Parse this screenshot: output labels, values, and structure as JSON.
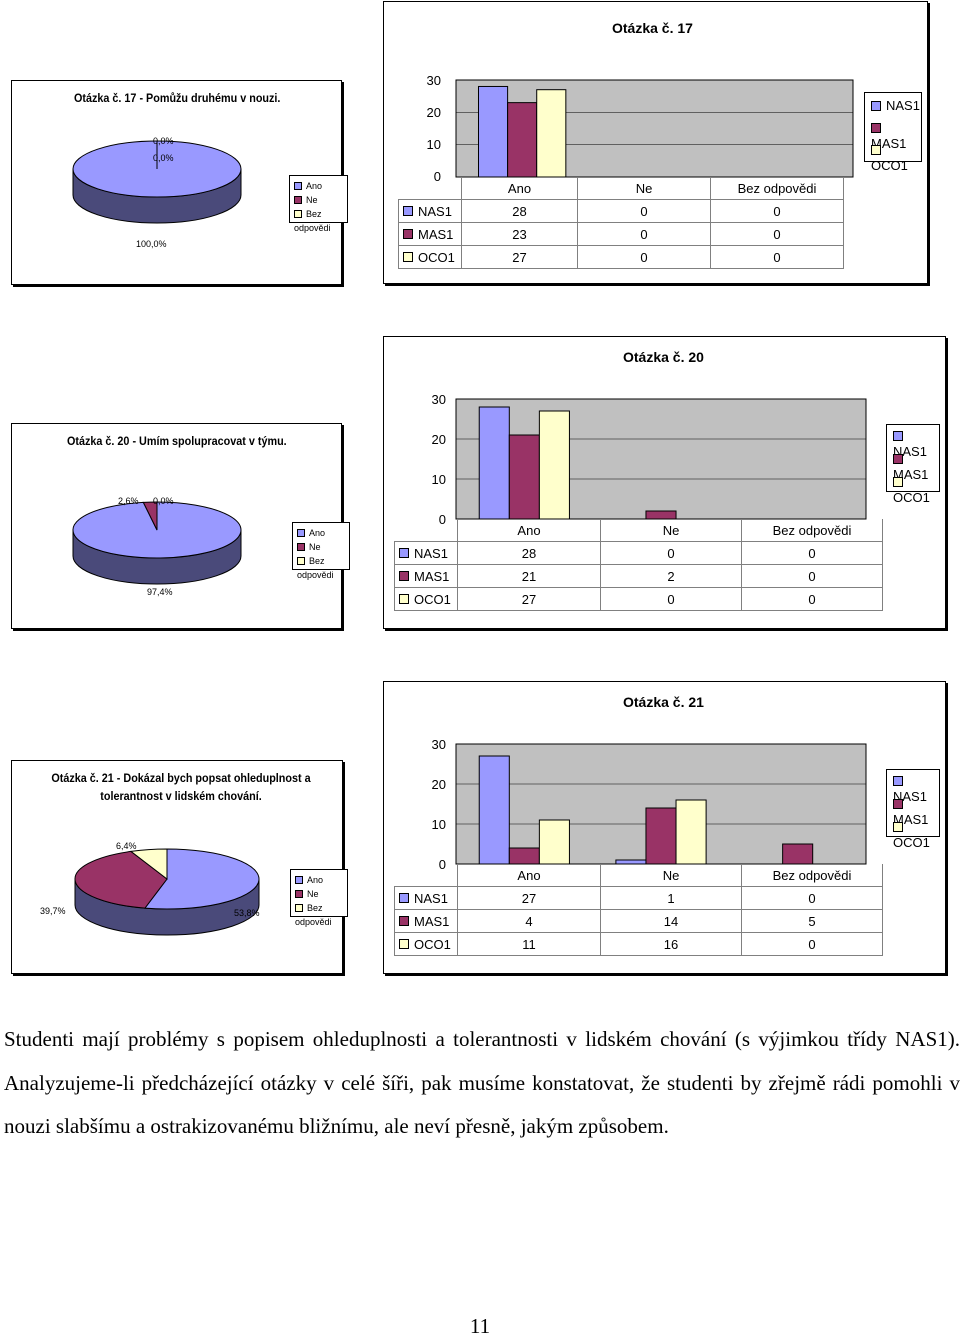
{
  "colors": {
    "NAS1": "#9999ff",
    "MAS1": "#993366",
    "OCO1": "#ffffcc",
    "plot_bg": "#c0c0c0",
    "pie_side_dark": "#4a4a7a"
  },
  "legend_series": [
    "NAS1",
    "MAS1",
    "OCO1"
  ],
  "legend_answers": [
    "Ano",
    "Ne",
    "Bez odpovědi"
  ],
  "chart_data": [
    {
      "type": "pie",
      "title": "Otázka č. 17 - Pomůžu druhému v nouzi.",
      "categories": [
        "Ano",
        "Ne",
        "Bez odpovědi"
      ],
      "values": [
        100.0,
        0.0,
        0.0
      ],
      "labels": [
        "100,0%",
        "0,0%",
        "0,0%"
      ]
    },
    {
      "type": "bar",
      "title": "Otázka č. 17",
      "categories": [
        "Ano",
        "Ne",
        "Bez odpovědi"
      ],
      "series": [
        {
          "name": "NAS1",
          "values": [
            28,
            0,
            0
          ]
        },
        {
          "name": "MAS1",
          "values": [
            23,
            0,
            0
          ]
        },
        {
          "name": "OCO1",
          "values": [
            27,
            0,
            0
          ]
        }
      ],
      "yticks": [
        "30",
        "20",
        "10",
        "0"
      ],
      "ylim": [
        0,
        30
      ]
    },
    {
      "type": "pie",
      "title": "Otázka č. 20 - Umím spolupracovat v týmu.",
      "categories": [
        "Ano",
        "Ne",
        "Bez odpovědi"
      ],
      "values": [
        97.4,
        2.6,
        0.0
      ],
      "labels": [
        "97,4%",
        "2,6%",
        "0,0%"
      ]
    },
    {
      "type": "bar",
      "title": "Otázka č. 20",
      "categories": [
        "Ano",
        "Ne",
        "Bez odpovědi"
      ],
      "series": [
        {
          "name": "NAS1",
          "values": [
            28,
            0,
            0
          ]
        },
        {
          "name": "MAS1",
          "values": [
            21,
            2,
            0
          ]
        },
        {
          "name": "OCO1",
          "values": [
            27,
            0,
            0
          ]
        }
      ],
      "yticks": [
        "30",
        "20",
        "10",
        "0"
      ],
      "ylim": [
        0,
        30
      ]
    },
    {
      "type": "pie",
      "title_line1": "Otázka č. 21 - Dokázal bych popsat ohleduplnost a",
      "title_line2": "tolerantnost v lidském chování.",
      "categories": [
        "Ano",
        "Ne",
        "Bez odpovědi"
      ],
      "values": [
        53.8,
        39.7,
        6.4
      ],
      "labels": [
        "53,8%",
        "39,7%",
        "6,4%"
      ]
    },
    {
      "type": "bar",
      "title": "Otázka č. 21",
      "categories": [
        "Ano",
        "Ne",
        "Bez odpovědi"
      ],
      "series": [
        {
          "name": "NAS1",
          "values": [
            27,
            1,
            0
          ]
        },
        {
          "name": "MAS1",
          "values": [
            4,
            14,
            5
          ]
        },
        {
          "name": "OCO1",
          "values": [
            11,
            16,
            0
          ]
        }
      ],
      "yticks": [
        "30",
        "20",
        "10",
        "0"
      ],
      "ylim": [
        0,
        30
      ]
    }
  ],
  "paragraph": "Studenti mají problémy s popisem ohleduplnosti a tolerantnosti v lidském chování (s výjimkou třídy NAS1). Analyzujeme-li předcházející otázky v celé šíři, pak musíme konstatovat, že studenti by zřejmě rádi pomohli v nouzi slabšímu a ostrakizovanému bližnímu, ale neví přesně, jakým způsobem.",
  "page_number": "11"
}
